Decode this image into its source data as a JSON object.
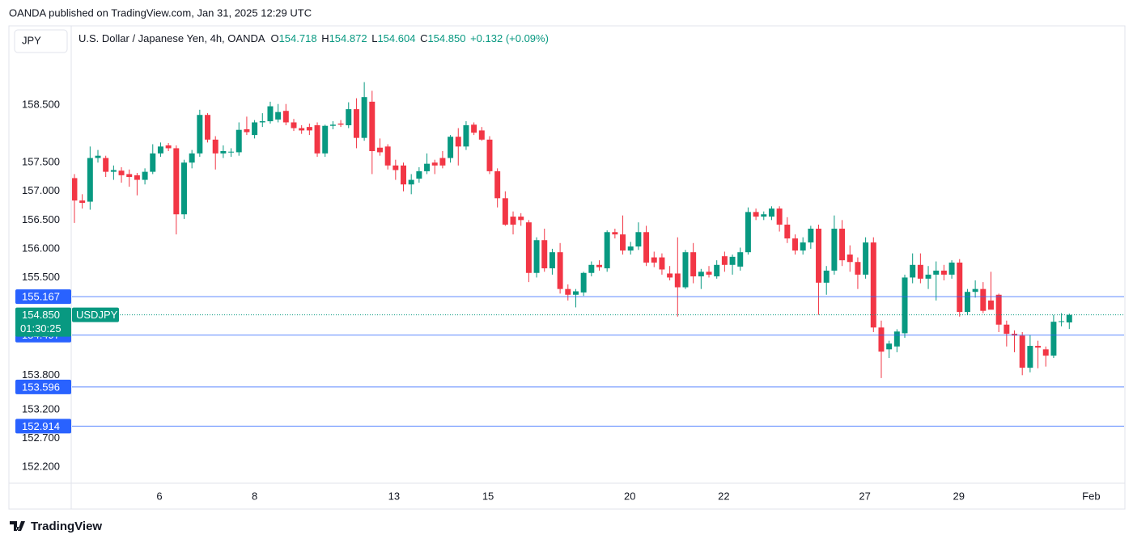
{
  "chart_data": {
    "type": "candlestick",
    "publisher": "OANDA published on TradingView.com, Jan 31, 2025 12:29 UTC",
    "currency": "JPY",
    "title": "U.S. Dollar / Japanese Yen, 4h, OANDA",
    "ohlc_header": [
      {
        "name": "O",
        "value": 154.718
      },
      {
        "name": "H",
        "value": 154.872
      },
      {
        "name": "L",
        "value": 154.604
      },
      {
        "name": "C",
        "value": 154.85,
        "label": "154.850"
      }
    ],
    "change": "+0.132 (+0.09%)",
    "symbol": "USDJPY",
    "countdown": "01:30:25",
    "last_price": {
      "value": 154.85,
      "label": "154.850"
    },
    "brand": "TradingView",
    "up_color": "#089981",
    "down_color": "#f23645",
    "hline_color": "#2962ff",
    "open": [
      157.23,
      156.84,
      156.82,
      157.58,
      157.58,
      157.34,
      157.36,
      157.3,
      157.28,
      157.2,
      157.34,
      157.66,
      157.8,
      157.75,
      156.6,
      157.5,
      157.66,
      158.33,
      157.9,
      157.66,
      157.68,
      157.68,
      158.08,
      157.98,
      158.2,
      158.22,
      158.25,
      158.4,
      158.2,
      158.1,
      158.12,
      158.15,
      157.66,
      158.14,
      158.18,
      158.15,
      158.43,
      157.93,
      158.56,
      157.76,
      157.78,
      157.45,
      157.45,
      157.12,
      157.22,
      157.35,
      157.5,
      157.58,
      157.58,
      157.95,
      157.78,
      158.16,
      158.06,
      157.9,
      157.35,
      156.88,
      156.56,
      156.56,
      156.46,
      155.58,
      156.15,
      155.66,
      155.94,
      155.3,
      155.2,
      155.24,
      155.58,
      155.72,
      155.66,
      156.29,
      156.25,
      155.97,
      156.04,
      156.29,
      155.85,
      155.85,
      155.57,
      155.57,
      155.33,
      155.94,
      155.52,
      155.6,
      155.52,
      155.87,
      155.72,
      155.69,
      155.94,
      156.64,
      156.56,
      156.56,
      156.7,
      156.42,
      156.18,
      155.97,
      156.11,
      156.35,
      155.41,
      155.62,
      156.35,
      155.9,
      155.77,
      155.55,
      156.11,
      154.63,
      154.25,
      154.3,
      154.53,
      155.5,
      155.72,
      155.48,
      155.55,
      155.62,
      155.55,
      155.76,
      154.9,
      155.25,
      155.3,
      155.1,
      155.2,
      154.68,
      154.52,
      154.49,
      153.93,
      154.31,
      154.25,
      154.14,
      154.73,
      154.718
    ],
    "high": [
      157.3,
      156.95,
      157.78,
      157.72,
      157.62,
      157.45,
      157.42,
      157.38,
      157.32,
      157.4,
      157.82,
      157.85,
      157.84,
      157.8,
      157.55,
      157.72,
      158.42,
      158.36,
      157.96,
      157.8,
      157.75,
      158.2,
      158.3,
      158.24,
      158.36,
      158.56,
      158.52,
      158.52,
      158.26,
      158.15,
      158.18,
      158.2,
      158.16,
      158.22,
      158.24,
      158.55,
      158.62,
      158.9,
      158.75,
      157.92,
      157.82,
      157.55,
      157.5,
      157.3,
      157.42,
      157.66,
      157.55,
      157.7,
      157.98,
      158.1,
      158.22,
      158.2,
      158.12,
      157.96,
      157.4,
      157.0,
      156.65,
      156.62,
      156.5,
      156.2,
      156.35,
      156.0,
      156.1,
      155.38,
      155.3,
      155.6,
      155.78,
      155.8,
      156.32,
      156.35,
      156.58,
      156.12,
      156.46,
      156.4,
      155.95,
      155.92,
      155.7,
      156.2,
      155.98,
      156.1,
      155.65,
      155.7,
      155.8,
      155.95,
      155.9,
      156.02,
      156.72,
      156.7,
      156.65,
      156.74,
      156.74,
      156.55,
      156.25,
      156.2,
      156.4,
      156.42,
      155.7,
      156.58,
      156.5,
      156.06,
      155.85,
      156.2,
      156.2,
      154.75,
      154.4,
      154.6,
      155.55,
      155.92,
      155.92,
      155.7,
      155.78,
      155.72,
      155.8,
      155.82,
      155.3,
      155.45,
      155.42,
      155.6,
      155.22,
      154.75,
      154.58,
      154.55,
      154.5,
      154.4,
      154.3,
      154.85,
      154.88,
      154.872
    ],
    "low": [
      156.45,
      156.7,
      156.68,
      157.5,
      157.25,
      157.2,
      157.15,
      157.08,
      156.93,
      157.12,
      157.3,
      157.6,
      157.7,
      156.25,
      156.52,
      157.4,
      157.6,
      157.85,
      157.38,
      157.58,
      157.6,
      157.62,
      157.98,
      157.92,
      158.12,
      158.18,
      158.2,
      158.15,
      158.05,
      158.0,
      157.98,
      157.6,
      157.6,
      158.08,
      158.12,
      158.1,
      157.75,
      157.88,
      157.3,
      157.62,
      157.38,
      157.2,
      157.0,
      156.95,
      157.15,
      157.3,
      157.3,
      157.4,
      157.5,
      157.45,
      157.72,
      157.98,
      157.88,
      157.3,
      156.72,
      156.4,
      156.25,
      156.4,
      155.42,
      155.5,
      155.6,
      155.55,
      155.22,
      155.1,
      154.98,
      155.18,
      155.52,
      155.62,
      155.6,
      156.18,
      155.9,
      155.9,
      155.98,
      155.7,
      155.68,
      155.55,
      155.45,
      154.82,
      155.3,
      155.4,
      155.3,
      155.5,
      155.48,
      155.6,
      155.55,
      155.62,
      155.9,
      156.5,
      156.5,
      156.5,
      156.3,
      156.1,
      155.9,
      155.9,
      156.0,
      154.85,
      155.2,
      155.55,
      155.7,
      155.6,
      155.3,
      155.48,
      154.55,
      153.75,
      154.1,
      154.2,
      154.45,
      155.4,
      155.4,
      155.3,
      155.1,
      155.45,
      155.48,
      154.82,
      154.85,
      155.15,
      154.88,
      154.98,
      154.55,
      154.3,
      154.2,
      153.8,
      153.85,
      153.92,
      153.95,
      154.1,
      154.65,
      154.604
    ],
    "close": [
      156.84,
      156.8,
      157.58,
      157.62,
      157.34,
      157.37,
      157.28,
      157.25,
      157.2,
      157.34,
      157.66,
      157.78,
      157.75,
      156.6,
      157.5,
      157.66,
      158.33,
      157.9,
      157.66,
      157.7,
      157.69,
      158.07,
      158.03,
      158.2,
      158.22,
      158.48,
      158.38,
      158.2,
      158.1,
      158.06,
      158.06,
      157.66,
      158.14,
      158.16,
      158.16,
      158.43,
      157.93,
      158.64,
      157.7,
      157.68,
      157.45,
      157.37,
      157.12,
      157.2,
      157.35,
      157.48,
      157.45,
      157.45,
      157.95,
      157.78,
      158.15,
      158.02,
      157.9,
      157.35,
      156.88,
      156.42,
      156.42,
      156.5,
      155.58,
      156.15,
      155.66,
      155.94,
      155.3,
      155.2,
      155.26,
      155.58,
      155.72,
      155.68,
      156.29,
      156.25,
      155.97,
      156.04,
      156.29,
      155.76,
      155.76,
      155.64,
      155.5,
      155.33,
      155.94,
      155.52,
      155.6,
      155.55,
      155.72,
      155.72,
      155.86,
      155.94,
      156.64,
      156.56,
      156.6,
      156.7,
      156.42,
      156.18,
      155.97,
      156.11,
      156.35,
      155.41,
      155.62,
      156.35,
      155.8,
      155.77,
      155.55,
      156.11,
      154.63,
      154.21,
      154.35,
      154.56,
      155.5,
      155.72,
      155.48,
      155.55,
      155.62,
      155.55,
      155.76,
      154.9,
      155.25,
      155.3,
      154.92,
      154.94,
      154.68,
      154.52,
      154.49,
      153.93,
      154.31,
      154.28,
      154.14,
      154.73,
      154.74,
      154.85
    ],
    "ylim": [
      151.92,
      159.88
    ],
    "yticks": [
      {
        "value": 158.5,
        "label": "158.500"
      },
      {
        "value": 157.5,
        "label": "157.500"
      },
      {
        "value": 157,
        "label": "157.000"
      },
      {
        "value": 156.5,
        "label": "156.500"
      },
      {
        "value": 156,
        "label": "156.000"
      },
      {
        "value": 155.5,
        "label": "155.500"
      },
      {
        "value": 153.8,
        "label": "153.800"
      },
      {
        "value": 153.2,
        "label": "153.200"
      },
      {
        "value": 152.7,
        "label": "152.700"
      },
      {
        "value": 152.2,
        "label": "152.200"
      }
    ],
    "xlim": [
      -0.41,
      134.1
    ],
    "xticks": [
      {
        "value": 10.85,
        "label": "6"
      },
      {
        "value": 23.0,
        "label": "8"
      },
      {
        "value": 40.8,
        "label": "13"
      },
      {
        "value": 52.8,
        "label": "15"
      },
      {
        "value": 70.9,
        "label": "20"
      },
      {
        "value": 82.9,
        "label": "22"
      },
      {
        "value": 100.9,
        "label": "27"
      },
      {
        "value": 112.9,
        "label": "29"
      },
      {
        "value": 129.8,
        "label": "Feb"
      }
    ],
    "hlines": [
      155.167,
      154.497,
      153.596,
      152.914
    ]
  }
}
